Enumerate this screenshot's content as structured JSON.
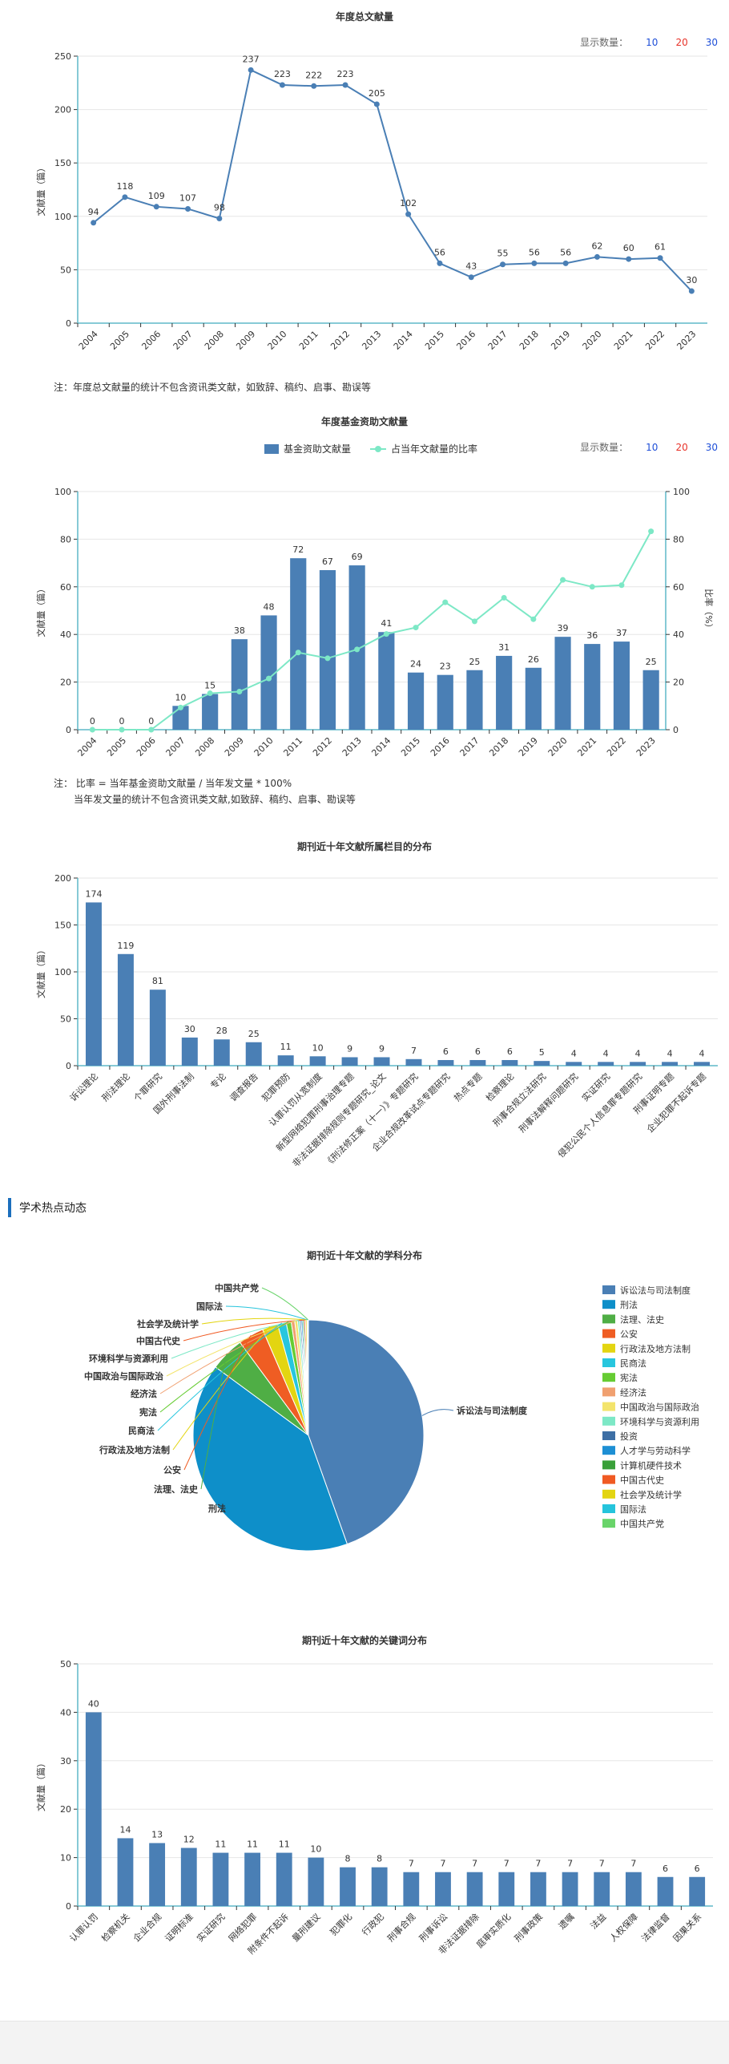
{
  "controls": {
    "label": "显示数量：",
    "options": [
      "10",
      "20",
      "30"
    ],
    "option_colors": [
      "#1f4fd8",
      "#e8332a",
      "#1f4fd8"
    ]
  },
  "section_heading": "学术热点动态",
  "notes": {
    "annual": "注：年度总文献量的统计不包含资讯类文献，如致辞、稿约、启事、勘误等",
    "fund_line1": "注： 比率 = 当年基金资助文献量 / 当年发文量 * 100%",
    "fund_line2": "当年发文量的统计不包含资讯类文献,如致辞、稿约、启事、勘误等"
  },
  "chart_data": [
    {
      "id": "annual",
      "type": "line",
      "title": "年度总文献量",
      "ylabel": "文献量（篇）",
      "ylim": [
        0,
        250
      ],
      "yticks": [
        0,
        50,
        100,
        150,
        200,
        250
      ],
      "color": "#4a7fb5",
      "x": [
        "2004",
        "2005",
        "2006",
        "2007",
        "2008",
        "2009",
        "2010",
        "2011",
        "2012",
        "2013",
        "2014",
        "2015",
        "2016",
        "2017",
        "2018",
        "2019",
        "2020",
        "2021",
        "2022",
        "2023"
      ],
      "values": [
        94,
        118,
        109,
        107,
        98,
        237,
        223,
        222,
        223,
        205,
        102,
        56,
        43,
        55,
        56,
        56,
        62,
        60,
        61,
        30
      ]
    },
    {
      "id": "fund",
      "type": "bar",
      "title": "年度基金资助文献量",
      "ylabel": "文献量（篇）",
      "y2label": "比率（%）",
      "ylim": [
        0,
        100
      ],
      "yticks": [
        0,
        20,
        40,
        60,
        80,
        100
      ],
      "y2ticks": [
        0,
        20,
        40,
        60,
        80,
        100
      ],
      "bar_color": "#4a7fb5",
      "line_color": "#7de8c6",
      "legend": [
        "基金资助文献量",
        "占当年文献量的比率"
      ],
      "x": [
        "2004",
        "2005",
        "2006",
        "2007",
        "2008",
        "2009",
        "2010",
        "2011",
        "2012",
        "2013",
        "2014",
        "2015",
        "2016",
        "2017",
        "2018",
        "2019",
        "2020",
        "2021",
        "2022",
        "2023"
      ],
      "values": [
        0,
        0,
        0,
        10,
        15,
        38,
        48,
        72,
        67,
        69,
        41,
        24,
        23,
        25,
        31,
        26,
        39,
        36,
        37,
        25
      ],
      "ratio": [
        0,
        0,
        0,
        9.3,
        15.3,
        16.0,
        21.5,
        32.4,
        30.0,
        33.7,
        40.2,
        42.9,
        53.5,
        45.5,
        55.4,
        46.4,
        62.9,
        60.0,
        60.7,
        83.3
      ]
    },
    {
      "id": "column",
      "type": "bar",
      "title": "期刊近十年文献所属栏目的分布",
      "ylabel": "文献量（篇）",
      "ylim": [
        0,
        200
      ],
      "yticks": [
        0,
        50,
        100,
        150,
        200
      ],
      "bar_color": "#4a7fb5",
      "categories": [
        "诉讼理论",
        "刑法理论",
        "个罪研究",
        "国外刑事法制",
        "专论",
        "调查报告",
        "犯罪预防",
        "认罪认罚从宽制度",
        "新型网络犯罪刑事治理专题",
        "非法证据排除规则专题研究_论文",
        "《刑法修正案（十一）》专题研究",
        "企业合规改革试点专题研究",
        "热点专题",
        "检察理论",
        "刑事合规立法研究",
        "刑事法解释问题研究",
        "实证研究",
        "侵犯公民个人信息罪专题研究",
        "刑事证明专题",
        "企业犯罪不起诉专题"
      ],
      "values": [
        174,
        119,
        81,
        30,
        28,
        25,
        11,
        10,
        9,
        9,
        7,
        6,
        6,
        6,
        5,
        4,
        4,
        4,
        4,
        4
      ]
    },
    {
      "id": "subject",
      "type": "pie",
      "title": "期刊近十年文献的学科分布",
      "slices": [
        {
          "name": "诉讼法与司法制度",
          "value": 445,
          "color": "#4a7fb5"
        },
        {
          "name": "刑法",
          "value": 405,
          "color": "#0e8fc9"
        },
        {
          "name": "法理、法史",
          "value": 48,
          "color": "#4fae45"
        },
        {
          "name": "公安",
          "value": 36,
          "color": "#ef5d23"
        },
        {
          "name": "行政法及地方法制",
          "value": 22,
          "color": "#e3d511"
        },
        {
          "name": "民商法",
          "value": 12,
          "color": "#27c6de"
        },
        {
          "name": "宪法",
          "value": 7,
          "color": "#66cc33"
        },
        {
          "name": "经济法",
          "value": 5,
          "color": "#f0a070"
        },
        {
          "name": "中国政治与国际政治",
          "value": 4,
          "color": "#f3e46c"
        },
        {
          "name": "环境科学与资源利用",
          "value": 3,
          "color": "#7de8c6"
        },
        {
          "name": "投资",
          "value": 2,
          "color": "#3d6fa5"
        },
        {
          "name": "人才学与劳动科学",
          "value": 2,
          "color": "#1d8fd4"
        },
        {
          "name": "计算机硬件技术",
          "value": 2,
          "color": "#3aa03a"
        },
        {
          "name": "中国古代史",
          "value": 2,
          "color": "#f05a23"
        },
        {
          "name": "社会学及统计学",
          "value": 2,
          "color": "#e3d511"
        },
        {
          "name": "国际法",
          "value": 1,
          "color": "#25c4dc"
        },
        {
          "name": "中国共产党",
          "value": 1,
          "color": "#69d46a"
        }
      ],
      "callouts": [
        "中国共产党",
        "国际法",
        "社会学及统计学",
        "中国古代史",
        "环境科学与资源利用",
        "中国政治与国际政治",
        "经济法",
        "宪法",
        "民商法",
        "行政法及地方法制",
        "公安",
        "法理、法史",
        "刑法",
        "诉讼法与司法制度"
      ]
    },
    {
      "id": "keyword",
      "type": "bar",
      "title": "期刊近十年文献的关键词分布",
      "ylabel": "文献量（篇）",
      "ylim": [
        0,
        50
      ],
      "yticks": [
        0,
        10,
        20,
        30,
        40,
        50
      ],
      "bar_color": "#4a7fb5",
      "categories": [
        "认罪认罚",
        "检察机关",
        "企业合规",
        "证明标准",
        "实证研究",
        "网络犯罪",
        "附条件不起诉",
        "量刑建议",
        "犯罪化",
        "行政犯",
        "刑事合规",
        "刑事诉讼",
        "非法证据排除",
        "庭审实质化",
        "刑事政策",
        "遗嘱",
        "法益",
        "人权保障",
        "法律监督",
        "因果关系"
      ],
      "values": [
        40,
        14,
        13,
        12,
        11,
        11,
        11,
        10,
        8,
        8,
        7,
        7,
        7,
        7,
        7,
        7,
        7,
        7,
        6,
        6
      ]
    }
  ]
}
